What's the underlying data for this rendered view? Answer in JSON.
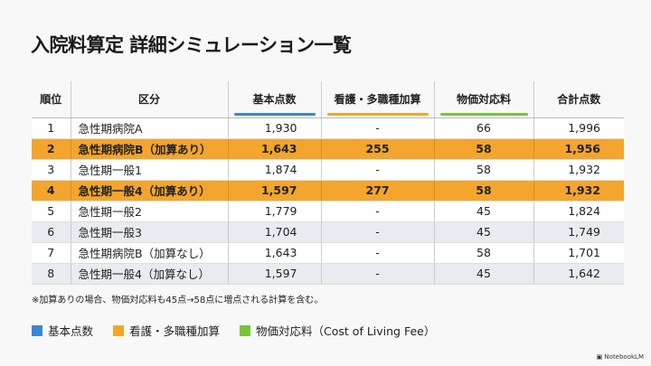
{
  "title": "入院料算定 詳細シミュレーション一覧",
  "colors": {
    "basic": "#3b86d4",
    "nursing": "#f3a52d",
    "living": "#77c43a"
  },
  "headers": [
    "順位",
    "区分",
    "基本点数",
    "看護・多職種加算",
    "物価対応料",
    "合計点数"
  ],
  "rows": [
    {
      "rank": "1",
      "name": "急性期病院A",
      "basic": "1,930",
      "nursing": "-",
      "living": "66",
      "total": "1,996",
      "style": "plain"
    },
    {
      "rank": "2",
      "name": "急性期病院B（加算あり）",
      "basic": "1,643",
      "nursing": "255",
      "living": "58",
      "total": "1,956",
      "style": "hl"
    },
    {
      "rank": "3",
      "name": "急性期一般1",
      "basic": "1,874",
      "nursing": "-",
      "living": "58",
      "total": "1,932",
      "style": "plain"
    },
    {
      "rank": "4",
      "name": "急性期一般4（加算あり）",
      "basic": "1,597",
      "nursing": "277",
      "living": "58",
      "total": "1,932",
      "style": "hl"
    },
    {
      "rank": "5",
      "name": "急性期一般2",
      "basic": "1,779",
      "nursing": "-",
      "living": "45",
      "total": "1,824",
      "style": "plain"
    },
    {
      "rank": "6",
      "name": "急性期一般3",
      "basic": "1,704",
      "nursing": "-",
      "living": "45",
      "total": "1,749",
      "style": "alt"
    },
    {
      "rank": "7",
      "name": "急性期病院B（加算なし）",
      "basic": "1,643",
      "nursing": "-",
      "living": "58",
      "total": "1,701",
      "style": "plain"
    },
    {
      "rank": "8",
      "name": "急性期一般4（加算なし）",
      "basic": "1,597",
      "nursing": "-",
      "living": "45",
      "total": "1,642",
      "style": "alt"
    }
  ],
  "note": "※加算ありの場合、物価対応料も45点→58点に増点される計算を含む。",
  "legend": [
    "基本点数",
    "看護・多職種加算",
    "物価対応料（Cost of Living Fee）"
  ],
  "brand": "NotebookLM"
}
